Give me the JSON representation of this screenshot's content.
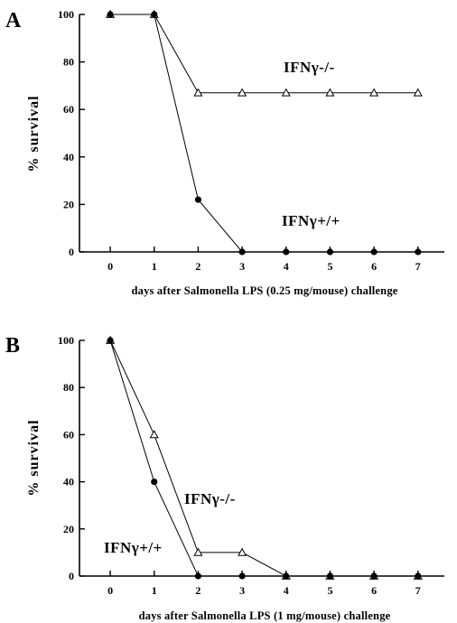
{
  "chart_data": [
    {
      "type": "line",
      "panel": "A",
      "x": [
        0,
        1,
        2,
        3,
        4,
        5,
        6,
        7
      ],
      "ylim": [
        0,
        100
      ],
      "xlim": [
        -0.7,
        7.6
      ],
      "yticks": [
        0,
        20,
        40,
        60,
        80,
        100
      ],
      "xlabel": "days after Salmonella LPS (0.25 mg/mouse) challenge",
      "ylabel": "% survival",
      "series": [
        {
          "name": "IFNγ-/-",
          "marker": "open-triangle",
          "values": [
            100,
            100,
            67,
            67,
            67,
            67,
            67,
            67
          ]
        },
        {
          "name": "IFNγ+/+",
          "marker": "filled-circle",
          "values": [
            100,
            100,
            22,
            0,
            0,
            0,
            0,
            0
          ]
        }
      ]
    },
    {
      "type": "line",
      "panel": "B",
      "x": [
        0,
        1,
        2,
        3,
        4,
        5,
        6,
        7
      ],
      "ylim": [
        0,
        100
      ],
      "xlim": [
        -0.7,
        7.6
      ],
      "yticks": [
        0,
        20,
        40,
        60,
        80,
        100
      ],
      "xlabel": "days after Salmonella LPS (1 mg/mouse) challenge",
      "ylabel": "% survival",
      "series": [
        {
          "name": "IFNγ-/-",
          "marker": "open-triangle",
          "values": [
            100,
            60,
            10,
            10,
            0,
            0,
            0,
            0
          ]
        },
        {
          "name": "IFNγ+/+",
          "marker": "filled-circle",
          "values": [
            100,
            40,
            0,
            0,
            0,
            0,
            0,
            0
          ]
        }
      ]
    }
  ]
}
